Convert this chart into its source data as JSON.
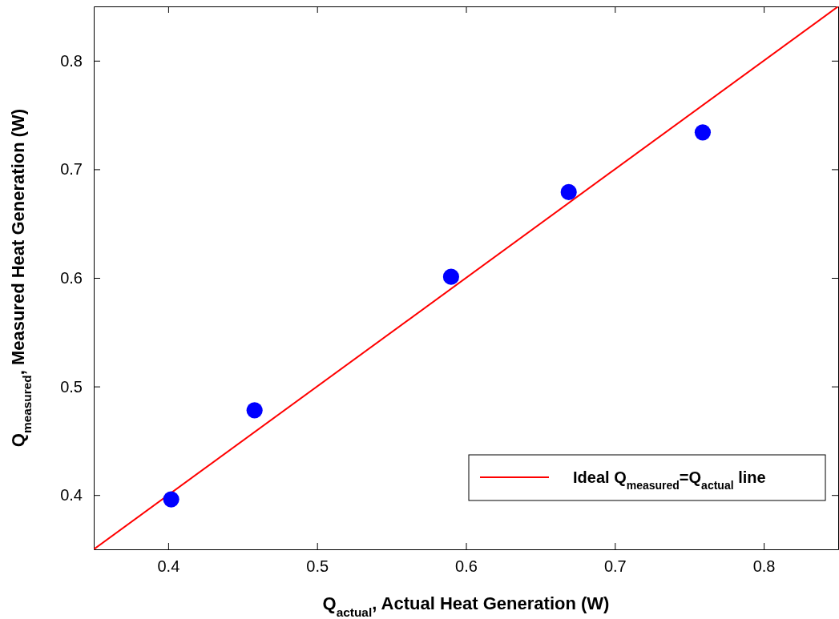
{
  "chart_data": {
    "type": "scatter",
    "xlabel": "Q$_{actual}$, Actual Heat Generation (W)",
    "ylabel": "Q$_{measured}$, Measured Heat Generation (W)",
    "xlim": [
      0.35,
      0.85
    ],
    "ylim": [
      0.35,
      0.85
    ],
    "xticks": [
      0.4,
      0.5,
      0.6,
      0.7,
      0.8
    ],
    "yticks": [
      0.4,
      0.5,
      0.6,
      0.7,
      0.8
    ],
    "grid": false,
    "legend": "bottom right",
    "series": [
      {
        "marker": "circle",
        "color": "#0000ff",
        "x": [
          0.402,
          0.458,
          0.59,
          0.669,
          0.759
        ],
        "values": [
          0.396,
          0.478,
          0.601,
          0.679,
          0.734
        ]
      },
      {
        "type": "line",
        "name": "Ideal Q$_{measured}$=Q$_{actual}$ line",
        "color": "#ff0000",
        "line_style": "solid",
        "marker": "none",
        "x": [
          0.35,
          0.85
        ],
        "values": [
          0.35,
          0.85
        ]
      }
    ]
  }
}
